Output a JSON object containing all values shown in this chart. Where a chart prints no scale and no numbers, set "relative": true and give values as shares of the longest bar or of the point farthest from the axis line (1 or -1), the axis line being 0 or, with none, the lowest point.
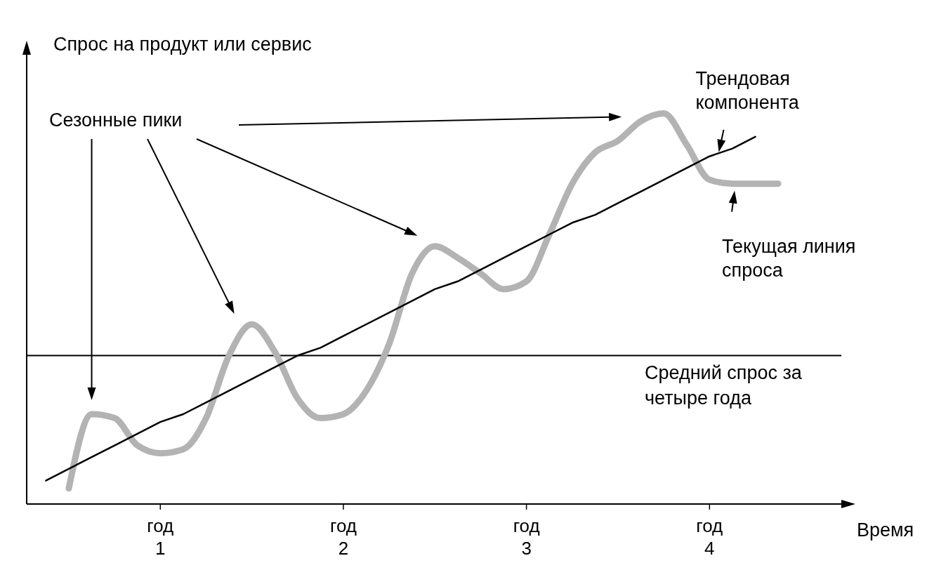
{
  "chart_data": {
    "type": "line",
    "relative": true,
    "ylabel": "Спрос на продукт или сервис",
    "xlabel": "Время",
    "categories": [
      null,
      null,
      null,
      null,
      null,
      "год 1",
      null,
      null,
      null,
      null,
      null,
      null,
      null,
      "год 2",
      null,
      null,
      null,
      null,
      null,
      null,
      null,
      "год 3",
      null,
      null,
      null,
      null,
      null,
      null,
      null,
      "год 4",
      null,
      null,
      null
    ],
    "legend": false,
    "grid": false,
    "marker": "none",
    "line_style": "solid",
    "annotations": [
      "Сезонные пики"
    ],
    "ref_lines": [
      {
        "axis": "y",
        "value": 0.38,
        "label": "Средний спрос за четыре года",
        "color": "#000000"
      }
    ],
    "series": [
      {
        "name": "Трендовая компонента",
        "color": "#000000",
        "values": [
          0.06,
          0.09,
          0.12,
          0.15,
          0.18,
          0.21,
          0.23,
          0.26,
          0.29,
          0.32,
          0.35,
          0.38,
          0.4,
          0.43,
          0.46,
          0.49,
          0.52,
          0.55,
          0.57,
          0.6,
          0.63,
          0.66,
          0.69,
          0.72,
          0.74,
          0.77,
          0.8,
          0.83,
          0.86,
          0.89,
          0.91,
          0.94,
          null
        ]
      },
      {
        "name": "Текущая линия спроса",
        "color": "#b3b3b3",
        "values": [
          null,
          0.04,
          0.23,
          0.22,
          0.15,
          0.13,
          0.14,
          0.22,
          0.38,
          0.46,
          0.39,
          0.27,
          0.22,
          0.23,
          0.29,
          0.41,
          0.59,
          0.66,
          0.63,
          0.59,
          0.55,
          0.57,
          0.69,
          0.82,
          0.9,
          0.93,
          0.98,
          1.0,
          0.92,
          0.83,
          0.82,
          0.82,
          0.82
        ]
      }
    ]
  }
}
